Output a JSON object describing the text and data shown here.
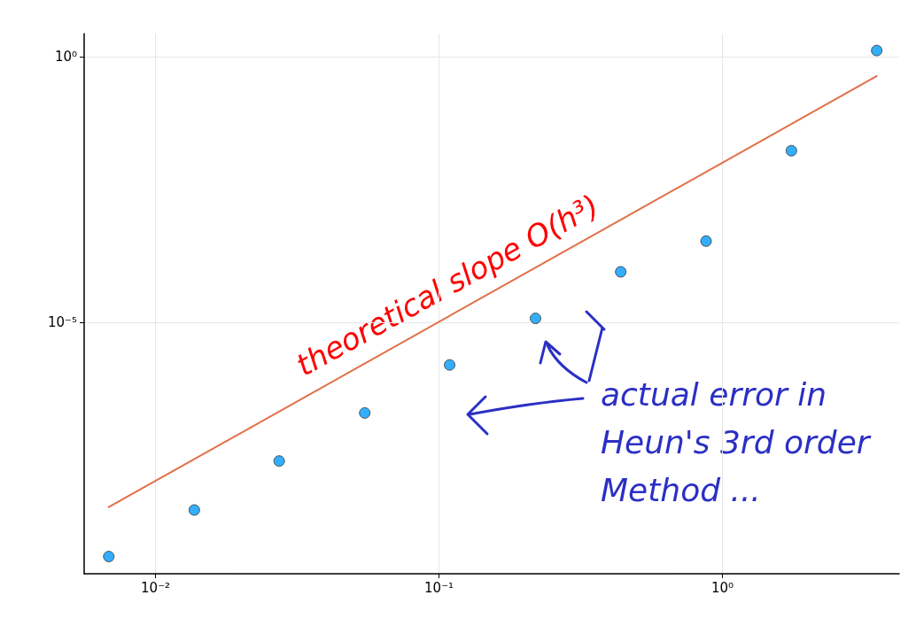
{
  "chart_data": {
    "type": "scatter",
    "log": "xy",
    "grid": true,
    "x": [
      0.00684,
      0.0137,
      0.0273,
      0.0547,
      0.109,
      0.219,
      0.4375,
      0.875,
      1.75,
      3.5
    ],
    "series": [
      {
        "color": "#009af9",
        "marker": "circle",
        "values": [
          4e-10,
          3e-09,
          2.5e-08,
          2e-07,
          1.6e-06,
          1.2e-05,
          9e-05,
          0.00034,
          0.017,
          1.3
        ]
      },
      {
        "type": "line",
        "color": "#e26f46",
        "line_style": "solid",
        "x": [
          0.00684,
          3.5
        ],
        "values": [
          3.4e-09,
          0.43
        ]
      }
    ],
    "xlim": [
      0.0056,
      4.2
    ],
    "ylim": [
      1.9e-10,
      2.7
    ],
    "xticks": [
      {
        "value": 0.01,
        "label": "10⁻²"
      },
      {
        "value": 0.1,
        "label": "10⁻¹"
      },
      {
        "value": 1,
        "label": "10⁰"
      }
    ],
    "yticks": [
      {
        "value": 1e-05,
        "label": "10⁻⁵"
      },
      {
        "value": 1,
        "label": "10⁰"
      }
    ],
    "annotations": [
      "theoretical slope O(h³)",
      "actual error in Heun's 3rd order Method ..."
    ]
  }
}
